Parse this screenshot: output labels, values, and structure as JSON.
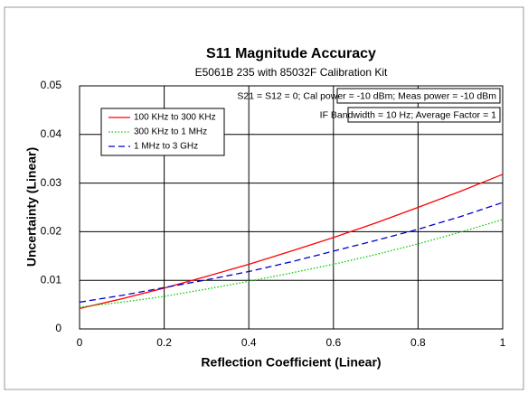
{
  "chart_data": {
    "type": "line",
    "title": "S11 Magnitude Accuracy",
    "subtitle": "E5061B 235 with 85032F Calibration Kit",
    "x_label": "Reflection Coefficient (Linear)",
    "y_label": "Uncertainty (Linear)",
    "annotations": [
      "S21 = S12 = 0; Cal power = -10 dBm; Meas power = -10 dBm",
      "IF Bandwidth = 10 Hz; Average Factor = 1"
    ],
    "x": [
      0,
      0.1,
      0.2,
      0.3,
      0.4,
      0.5,
      0.6,
      0.7,
      0.8,
      0.9,
      1
    ],
    "series": [
      {
        "name": "100 KHz to 300 KHz",
        "color": "#ff0000",
        "dash": "solid",
        "values": [
          0.0042,
          0.0062,
          0.0084,
          0.0108,
          0.0133,
          0.016,
          0.0188,
          0.0218,
          0.025,
          0.0283,
          0.0318
        ]
      },
      {
        "name": "300 KHz to 1 MHz",
        "color": "#00cc00",
        "dash": "dotted",
        "values": [
          0.0045,
          0.0055,
          0.0067,
          0.0082,
          0.0098,
          0.0115,
          0.0133,
          0.0153,
          0.0175,
          0.0199,
          0.0225
        ]
      },
      {
        "name": "1 MHz to 3 GHz",
        "color": "#0000cc",
        "dash": "dashed",
        "values": [
          0.0055,
          0.0069,
          0.0085,
          0.0101,
          0.0118,
          0.0138,
          0.016,
          0.0182,
          0.0205,
          0.0231,
          0.026
        ]
      }
    ],
    "xlim": [
      0,
      1
    ],
    "xticks": [
      0,
      0.2,
      0.4,
      0.6,
      0.8,
      1
    ],
    "ylim": [
      0,
      0.05
    ],
    "yticks": [
      0,
      0.01,
      0.02,
      0.03,
      0.04,
      0.05
    ],
    "grid": true,
    "legend": "upper left"
  }
}
